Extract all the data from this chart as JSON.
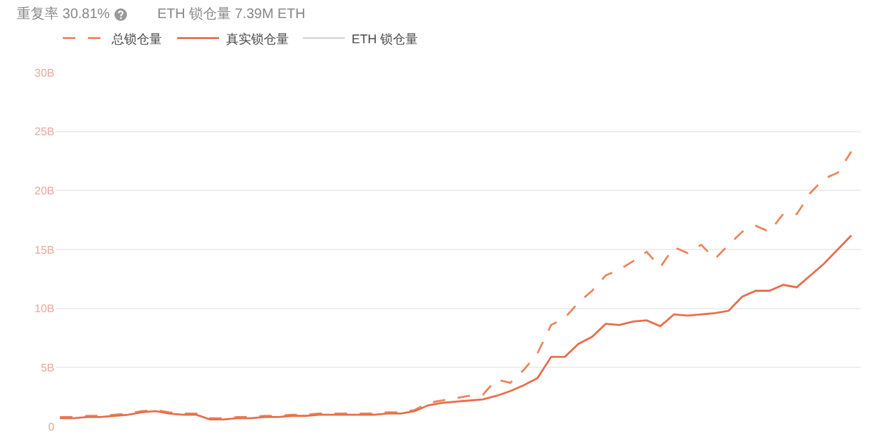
{
  "chart_data": {
    "type": "line",
    "annotations": [
      "重复率 30.81%",
      "ETH 锁仓量 7.39M ETH"
    ],
    "categories": [
      null,
      null,
      null,
      null,
      null,
      null,
      null,
      null,
      null,
      null,
      null,
      null,
      null,
      null,
      null,
      null,
      null,
      null,
      null,
      null,
      null,
      null,
      null,
      null,
      null,
      null,
      null,
      null,
      null,
      null,
      null,
      null,
      null,
      null,
      null,
      null,
      null,
      null,
      null,
      null,
      null,
      null,
      null,
      null,
      null,
      null,
      null,
      null,
      null,
      null,
      null,
      null,
      null,
      null,
      null,
      null,
      null,
      null,
      null
    ],
    "series": [
      {
        "name": "总锁仓量",
        "color": "#e9875f",
        "line_style": "dashed",
        "values": [
          0.8,
          0.8,
          0.9,
          0.9,
          1.0,
          1.1,
          1.3,
          1.4,
          1.2,
          1.1,
          1.1,
          0.7,
          0.7,
          0.8,
          0.8,
          0.9,
          0.9,
          1.0,
          1.0,
          1.1,
          1.1,
          1.1,
          1.1,
          1.1,
          1.2,
          1.2,
          1.4,
          2.0,
          2.2,
          2.4,
          2.6,
          2.7,
          4.0,
          3.7,
          4.8,
          6.2,
          8.6,
          9.2,
          10.5,
          11.5,
          12.8,
          13.3,
          14.0,
          14.8,
          13.5,
          15.2,
          14.7,
          15.4,
          14.2,
          15.4,
          16.5,
          17.0,
          16.5,
          18.0,
          18.0,
          19.8,
          21.0,
          21.5,
          23.3
        ]
      },
      {
        "name": "真实锁仓量",
        "color": "#e56f4a",
        "line_style": "solid",
        "values": [
          0.7,
          0.7,
          0.8,
          0.8,
          0.9,
          1.0,
          1.2,
          1.3,
          1.1,
          1.0,
          1.0,
          0.6,
          0.6,
          0.7,
          0.7,
          0.8,
          0.8,
          0.9,
          0.9,
          1.0,
          1.0,
          1.0,
          1.0,
          1.0,
          1.1,
          1.1,
          1.3,
          1.8,
          2.0,
          2.1,
          2.2,
          2.3,
          2.6,
          3.0,
          3.5,
          4.1,
          5.9,
          5.9,
          7.0,
          7.6,
          8.7,
          8.6,
          8.9,
          9.0,
          8.5,
          9.5,
          9.4,
          9.5,
          9.6,
          9.8,
          11.0,
          11.5,
          11.5,
          12.0,
          11.8,
          12.8,
          13.8,
          15.0,
          16.2
        ]
      },
      {
        "name": "ETH 锁仓量",
        "color": "#d9d9d9",
        "line_style": "solid",
        "values": [
          null,
          null,
          null,
          null,
          null,
          null,
          null,
          null,
          null,
          null,
          null,
          null,
          null,
          null,
          null,
          null,
          null,
          null,
          null,
          null,
          null,
          null,
          null,
          null,
          null,
          null,
          null,
          null,
          null,
          null,
          null,
          null,
          null,
          null,
          null,
          null,
          null,
          null,
          null,
          null,
          null,
          null,
          null,
          null,
          null,
          null,
          null,
          null,
          null,
          null,
          null,
          null,
          null,
          null,
          null,
          null,
          null,
          null,
          null
        ]
      }
    ],
    "ylim": [
      0,
      30
    ],
    "yticks": [
      {
        "value": 0,
        "label": "0"
      },
      {
        "value": 5,
        "label": "5B"
      },
      {
        "value": 10,
        "label": "10B"
      },
      {
        "value": 15,
        "label": "15B"
      },
      {
        "value": 20,
        "label": "20B"
      },
      {
        "value": 25,
        "label": "25B"
      },
      {
        "value": 30,
        "label": "30B"
      }
    ],
    "tick_labels": "y",
    "grid": "y",
    "legend": "top left",
    "marker": "none"
  }
}
